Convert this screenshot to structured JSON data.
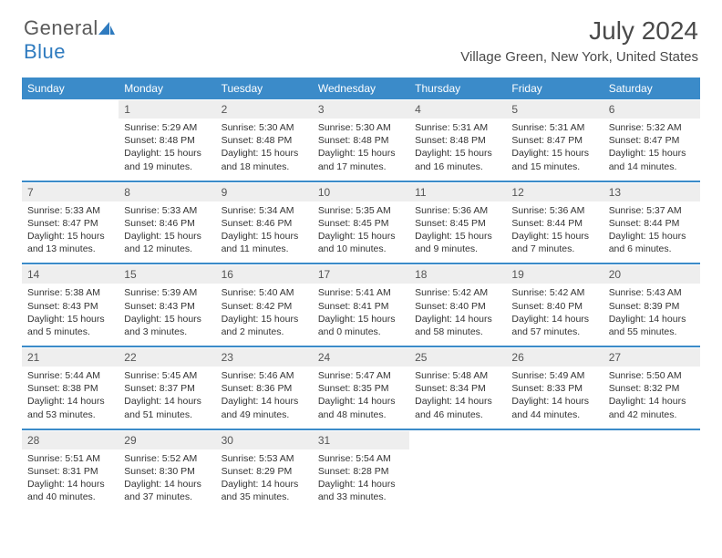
{
  "brand": {
    "part1": "General",
    "part2": "Blue"
  },
  "title": "July 2024",
  "location": "Village Green, New York, United States",
  "header_bg": "#3b8bc9",
  "daynum_bg": "#eeeeee",
  "weekdays": [
    "Sunday",
    "Monday",
    "Tuesday",
    "Wednesday",
    "Thursday",
    "Friday",
    "Saturday"
  ],
  "weeks": [
    [
      {
        "day": "",
        "sunrise": "",
        "sunset": "",
        "daylight": ""
      },
      {
        "day": "1",
        "sunrise": "Sunrise: 5:29 AM",
        "sunset": "Sunset: 8:48 PM",
        "daylight": "Daylight: 15 hours and 19 minutes."
      },
      {
        "day": "2",
        "sunrise": "Sunrise: 5:30 AM",
        "sunset": "Sunset: 8:48 PM",
        "daylight": "Daylight: 15 hours and 18 minutes."
      },
      {
        "day": "3",
        "sunrise": "Sunrise: 5:30 AM",
        "sunset": "Sunset: 8:48 PM",
        "daylight": "Daylight: 15 hours and 17 minutes."
      },
      {
        "day": "4",
        "sunrise": "Sunrise: 5:31 AM",
        "sunset": "Sunset: 8:48 PM",
        "daylight": "Daylight: 15 hours and 16 minutes."
      },
      {
        "day": "5",
        "sunrise": "Sunrise: 5:31 AM",
        "sunset": "Sunset: 8:47 PM",
        "daylight": "Daylight: 15 hours and 15 minutes."
      },
      {
        "day": "6",
        "sunrise": "Sunrise: 5:32 AM",
        "sunset": "Sunset: 8:47 PM",
        "daylight": "Daylight: 15 hours and 14 minutes."
      }
    ],
    [
      {
        "day": "7",
        "sunrise": "Sunrise: 5:33 AM",
        "sunset": "Sunset: 8:47 PM",
        "daylight": "Daylight: 15 hours and 13 minutes."
      },
      {
        "day": "8",
        "sunrise": "Sunrise: 5:33 AM",
        "sunset": "Sunset: 8:46 PM",
        "daylight": "Daylight: 15 hours and 12 minutes."
      },
      {
        "day": "9",
        "sunrise": "Sunrise: 5:34 AM",
        "sunset": "Sunset: 8:46 PM",
        "daylight": "Daylight: 15 hours and 11 minutes."
      },
      {
        "day": "10",
        "sunrise": "Sunrise: 5:35 AM",
        "sunset": "Sunset: 8:45 PM",
        "daylight": "Daylight: 15 hours and 10 minutes."
      },
      {
        "day": "11",
        "sunrise": "Sunrise: 5:36 AM",
        "sunset": "Sunset: 8:45 PM",
        "daylight": "Daylight: 15 hours and 9 minutes."
      },
      {
        "day": "12",
        "sunrise": "Sunrise: 5:36 AM",
        "sunset": "Sunset: 8:44 PM",
        "daylight": "Daylight: 15 hours and 7 minutes."
      },
      {
        "day": "13",
        "sunrise": "Sunrise: 5:37 AM",
        "sunset": "Sunset: 8:44 PM",
        "daylight": "Daylight: 15 hours and 6 minutes."
      }
    ],
    [
      {
        "day": "14",
        "sunrise": "Sunrise: 5:38 AM",
        "sunset": "Sunset: 8:43 PM",
        "daylight": "Daylight: 15 hours and 5 minutes."
      },
      {
        "day": "15",
        "sunrise": "Sunrise: 5:39 AM",
        "sunset": "Sunset: 8:43 PM",
        "daylight": "Daylight: 15 hours and 3 minutes."
      },
      {
        "day": "16",
        "sunrise": "Sunrise: 5:40 AM",
        "sunset": "Sunset: 8:42 PM",
        "daylight": "Daylight: 15 hours and 2 minutes."
      },
      {
        "day": "17",
        "sunrise": "Sunrise: 5:41 AM",
        "sunset": "Sunset: 8:41 PM",
        "daylight": "Daylight: 15 hours and 0 minutes."
      },
      {
        "day": "18",
        "sunrise": "Sunrise: 5:42 AM",
        "sunset": "Sunset: 8:40 PM",
        "daylight": "Daylight: 14 hours and 58 minutes."
      },
      {
        "day": "19",
        "sunrise": "Sunrise: 5:42 AM",
        "sunset": "Sunset: 8:40 PM",
        "daylight": "Daylight: 14 hours and 57 minutes."
      },
      {
        "day": "20",
        "sunrise": "Sunrise: 5:43 AM",
        "sunset": "Sunset: 8:39 PM",
        "daylight": "Daylight: 14 hours and 55 minutes."
      }
    ],
    [
      {
        "day": "21",
        "sunrise": "Sunrise: 5:44 AM",
        "sunset": "Sunset: 8:38 PM",
        "daylight": "Daylight: 14 hours and 53 minutes."
      },
      {
        "day": "22",
        "sunrise": "Sunrise: 5:45 AM",
        "sunset": "Sunset: 8:37 PM",
        "daylight": "Daylight: 14 hours and 51 minutes."
      },
      {
        "day": "23",
        "sunrise": "Sunrise: 5:46 AM",
        "sunset": "Sunset: 8:36 PM",
        "daylight": "Daylight: 14 hours and 49 minutes."
      },
      {
        "day": "24",
        "sunrise": "Sunrise: 5:47 AM",
        "sunset": "Sunset: 8:35 PM",
        "daylight": "Daylight: 14 hours and 48 minutes."
      },
      {
        "day": "25",
        "sunrise": "Sunrise: 5:48 AM",
        "sunset": "Sunset: 8:34 PM",
        "daylight": "Daylight: 14 hours and 46 minutes."
      },
      {
        "day": "26",
        "sunrise": "Sunrise: 5:49 AM",
        "sunset": "Sunset: 8:33 PM",
        "daylight": "Daylight: 14 hours and 44 minutes."
      },
      {
        "day": "27",
        "sunrise": "Sunrise: 5:50 AM",
        "sunset": "Sunset: 8:32 PM",
        "daylight": "Daylight: 14 hours and 42 minutes."
      }
    ],
    [
      {
        "day": "28",
        "sunrise": "Sunrise: 5:51 AM",
        "sunset": "Sunset: 8:31 PM",
        "daylight": "Daylight: 14 hours and 40 minutes."
      },
      {
        "day": "29",
        "sunrise": "Sunrise: 5:52 AM",
        "sunset": "Sunset: 8:30 PM",
        "daylight": "Daylight: 14 hours and 37 minutes."
      },
      {
        "day": "30",
        "sunrise": "Sunrise: 5:53 AM",
        "sunset": "Sunset: 8:29 PM",
        "daylight": "Daylight: 14 hours and 35 minutes."
      },
      {
        "day": "31",
        "sunrise": "Sunrise: 5:54 AM",
        "sunset": "Sunset: 8:28 PM",
        "daylight": "Daylight: 14 hours and 33 minutes."
      },
      {
        "day": "",
        "sunrise": "",
        "sunset": "",
        "daylight": ""
      },
      {
        "day": "",
        "sunrise": "",
        "sunset": "",
        "daylight": ""
      },
      {
        "day": "",
        "sunrise": "",
        "sunset": "",
        "daylight": ""
      }
    ]
  ]
}
